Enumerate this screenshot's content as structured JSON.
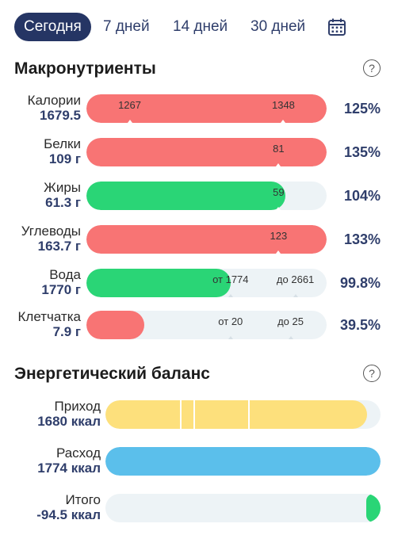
{
  "tabs": [
    {
      "label": "Сегодня",
      "active": true
    },
    {
      "label": "7 дней"
    },
    {
      "label": "14 дней"
    },
    {
      "label": "30 дней"
    }
  ],
  "macros": {
    "title": "Макронутриенты",
    "help": "?",
    "rows": [
      {
        "name": "Калории",
        "value": "1679.5",
        "percent": "125%",
        "fill_fraction": 1.0,
        "color": "#f87474",
        "markers": [
          "1267",
          "1348"
        ]
      },
      {
        "name": "Белки",
        "value": "109 г",
        "percent": "135%",
        "fill_fraction": 1.0,
        "color": "#f87474",
        "markers": [
          "81"
        ]
      },
      {
        "name": "Жиры",
        "value": "61.3 г",
        "percent": "104%",
        "fill_fraction": 0.83,
        "color": "#2ad576",
        "markers": [
          "59"
        ]
      },
      {
        "name": "Углеводы",
        "value": "163.7 г",
        "percent": "133%",
        "fill_fraction": 1.0,
        "color": "#f87474",
        "markers": [
          "123"
        ]
      },
      {
        "name": "Вода",
        "value": "1770 г",
        "percent": "99.8%",
        "fill_fraction": 0.6,
        "color": "#2ad576",
        "markers": [
          "от 1774",
          "до 2661"
        ]
      },
      {
        "name": "Клетчатка",
        "value": "7.9 г",
        "percent": "39.5%",
        "fill_fraction": 0.24,
        "color": "#f87474",
        "markers": [
          "от 20",
          "до 25"
        ]
      }
    ]
  },
  "energy": {
    "title": "Энергетический баланс",
    "help": "?",
    "rows": [
      {
        "name": "Приход",
        "value": "1680 ккал",
        "color": "#fde07c",
        "fill_fraction": 0.95
      },
      {
        "name": "Расход",
        "value": "1774 ккал",
        "color": "#5bbfeb",
        "fill_fraction": 1.0
      },
      {
        "name": "Итого",
        "value": "-94.5 ккал",
        "color": "#2ad576",
        "fill_fraction": 0.053
      }
    ]
  },
  "colors": {
    "accent": "#253564",
    "over": "#f87474",
    "ok": "#2ad576",
    "track": "#edf3f6"
  }
}
